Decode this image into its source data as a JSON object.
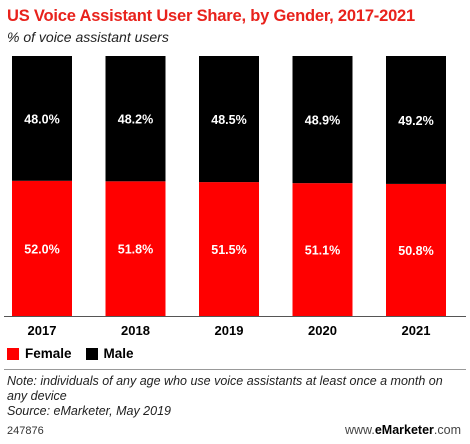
{
  "title": "US Voice Assistant User Share, by Gender, 2017-2021",
  "subtitle": "% of voice assistant users",
  "legend": [
    {
      "label": "Female",
      "color": "#ff0000"
    },
    {
      "label": "Male",
      "color": "#000000"
    }
  ],
  "note": "Note: individuals of any age who use voice assistants at least once a month on any device",
  "source": "Source: eMarketer, May 2019",
  "chart_id": "247876",
  "brand": {
    "prefix": "www.",
    "name": "eMarketer",
    "suffix": ".com"
  },
  "chart_data": {
    "type": "bar",
    "stacked": true,
    "categories": [
      "2017",
      "2018",
      "2019",
      "2020",
      "2021"
    ],
    "series": [
      {
        "name": "Female",
        "color": "#ff0000",
        "values": [
          52.0,
          51.8,
          51.5,
          51.1,
          50.8
        ],
        "labels": [
          "52.0%",
          "51.8%",
          "51.5%",
          "51.1%",
          "50.8%"
        ]
      },
      {
        "name": "Male",
        "color": "#000000",
        "values": [
          48.0,
          48.2,
          48.5,
          48.9,
          49.2
        ],
        "labels": [
          "48.0%",
          "48.2%",
          "48.5%",
          "48.9%",
          "49.2%"
        ]
      }
    ],
    "ylim": [
      0,
      100
    ],
    "grid": false,
    "legend_position": "bottom-left"
  }
}
